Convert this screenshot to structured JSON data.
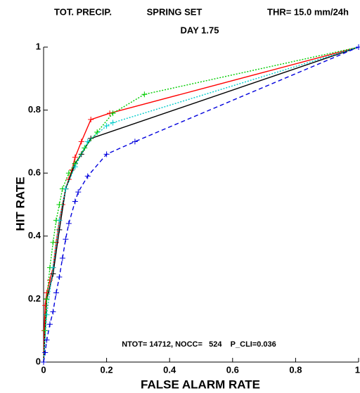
{
  "chart_data": {
    "type": "line",
    "title": [
      "TOT. PRECIP.",
      "SPRING SET",
      "THR= 15.0 mm/24h"
    ],
    "subtitle": "DAY 1.75",
    "annotation": "NTOT= 14712, NOCC=   524    P_CLI=0.036",
    "x_label": "FALSE ALARM RATE",
    "y_label": "HIT RATE",
    "xlim": [
      0,
      1
    ],
    "ylim": [
      0,
      1
    ],
    "xticks": [
      0,
      0.2,
      0.4,
      0.6,
      0.8,
      1
    ],
    "yticks": [
      0,
      0.2,
      0.4,
      0.6,
      0.8,
      1
    ],
    "series": [
      {
        "color": "#ff0000",
        "dash": "solid",
        "x": [
          0,
          0.002,
          0.005,
          0.01,
          0.02,
          0.03,
          0.04,
          0.05,
          0.06,
          0.07,
          0.08,
          0.09,
          0.1,
          0.12,
          0.15,
          0.21,
          1
        ],
        "values": [
          0,
          0.1,
          0.18,
          0.22,
          0.26,
          0.3,
          0.38,
          0.45,
          0.5,
          0.55,
          0.58,
          0.61,
          0.65,
          0.7,
          0.77,
          0.79,
          1
        ]
      },
      {
        "color": "#000000",
        "dash": "solid",
        "x": [
          0,
          0.01,
          0.03,
          0.05,
          0.07,
          0.1,
          0.12,
          0.15,
          1
        ],
        "values": [
          0,
          0.2,
          0.28,
          0.42,
          0.55,
          0.63,
          0.66,
          0.71,
          1
        ]
      },
      {
        "color": "#00cc00",
        "dash": "dotted",
        "x": [
          0,
          0.005,
          0.01,
          0.02,
          0.03,
          0.04,
          0.05,
          0.06,
          0.08,
          0.1,
          0.13,
          0.17,
          0.22,
          0.32,
          1
        ],
        "values": [
          0,
          0.1,
          0.2,
          0.3,
          0.38,
          0.45,
          0.5,
          0.55,
          0.6,
          0.63,
          0.68,
          0.73,
          0.79,
          0.85,
          1
        ]
      },
      {
        "color": "#00cccc",
        "dash": "dotted",
        "x": [
          0,
          0.01,
          0.03,
          0.05,
          0.07,
          0.1,
          0.14,
          0.2,
          0.22,
          1
        ],
        "values": [
          0,
          0.15,
          0.3,
          0.45,
          0.55,
          0.62,
          0.7,
          0.75,
          0.76,
          1
        ]
      },
      {
        "color": "#0000dd",
        "dash": "dashed",
        "x": [
          0,
          0.005,
          0.01,
          0.02,
          0.03,
          0.04,
          0.05,
          0.06,
          0.07,
          0.08,
          0.1,
          0.11,
          0.14,
          0.2,
          0.29,
          1
        ],
        "values": [
          0,
          0.03,
          0.07,
          0.12,
          0.16,
          0.22,
          0.27,
          0.33,
          0.39,
          0.44,
          0.51,
          0.54,
          0.59,
          0.66,
          0.7,
          1
        ]
      }
    ]
  }
}
